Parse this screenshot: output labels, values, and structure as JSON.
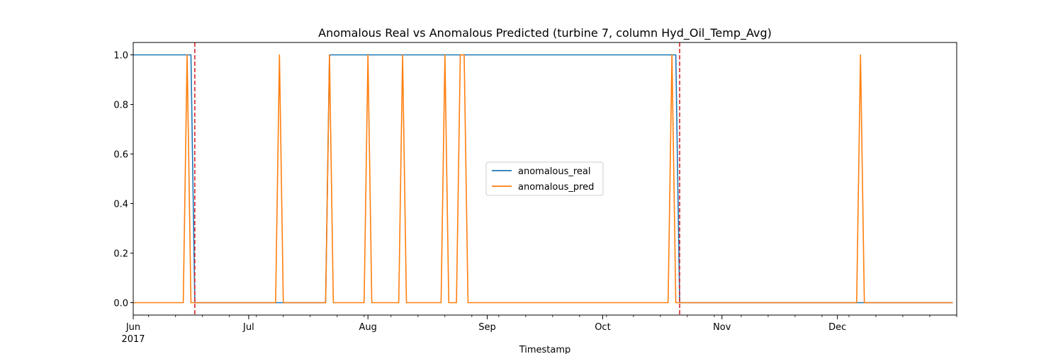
{
  "chart_data": {
    "type": "line",
    "title": "Anomalous Real vs Anomalous Predicted (turbine 7, column Hyd_Oil_Temp_Avg)",
    "xlabel": "Timestamp",
    "ylabel": "",
    "x_range": [
      "2017-06-01",
      "2017-12-31"
    ],
    "ylim": [
      -0.05,
      1.05
    ],
    "yticks": [
      0.0,
      0.2,
      0.4,
      0.6,
      0.8,
      1.0
    ],
    "ytick_labels": [
      "0.0",
      "0.2",
      "0.4",
      "0.6",
      "0.8",
      "1.0"
    ],
    "xticks": [
      {
        "date": "2017-06-01",
        "label": "Jun",
        "sublabel": "2017"
      },
      {
        "date": "2017-07-01",
        "label": "Jul",
        "sublabel": ""
      },
      {
        "date": "2017-08-01",
        "label": "Aug",
        "sublabel": ""
      },
      {
        "date": "2017-09-01",
        "label": "Sep",
        "sublabel": ""
      },
      {
        "date": "2017-10-01",
        "label": "Oct",
        "sublabel": ""
      },
      {
        "date": "2017-11-01",
        "label": "Nov",
        "sublabel": ""
      },
      {
        "date": "2017-12-01",
        "label": "Dec",
        "sublabel": ""
      }
    ],
    "grid": false,
    "legend_position": "center",
    "vlines": [
      {
        "date": "2017-06-17",
        "color": "#d62728",
        "style": "dashed"
      },
      {
        "date": "2017-10-21",
        "color": "#d62728",
        "style": "dashed"
      }
    ],
    "series": [
      {
        "name": "anomalous_real",
        "color": "#1f77b4",
        "points": [
          [
            "2017-06-01",
            1
          ],
          [
            "2017-06-16",
            1
          ],
          [
            "2017-06-17",
            0
          ],
          [
            "2017-07-21",
            0
          ],
          [
            "2017-07-22",
            1
          ],
          [
            "2017-10-20",
            1
          ],
          [
            "2017-10-21",
            0
          ],
          [
            "2017-12-31",
            0
          ]
        ]
      },
      {
        "name": "anomalous_pred",
        "color": "#ff7f0e",
        "points": [
          [
            "2017-06-01",
            0
          ],
          [
            "2017-06-14",
            0
          ],
          [
            "2017-06-15",
            1
          ],
          [
            "2017-06-16",
            0
          ],
          [
            "2017-07-08",
            0
          ],
          [
            "2017-07-09",
            1
          ],
          [
            "2017-07-10",
            0
          ],
          [
            "2017-07-21",
            0
          ],
          [
            "2017-07-22",
            1
          ],
          [
            "2017-07-23",
            0
          ],
          [
            "2017-07-31",
            0
          ],
          [
            "2017-08-01",
            1
          ],
          [
            "2017-08-02",
            0
          ],
          [
            "2017-08-09",
            0
          ],
          [
            "2017-08-10",
            1
          ],
          [
            "2017-08-11",
            0
          ],
          [
            "2017-08-20",
            0
          ],
          [
            "2017-08-21",
            1
          ],
          [
            "2017-08-22",
            0
          ],
          [
            "2017-08-24",
            0
          ],
          [
            "2017-08-25",
            1
          ],
          [
            "2017-08-26",
            1
          ],
          [
            "2017-08-27",
            0
          ],
          [
            "2017-10-18",
            0
          ],
          [
            "2017-10-19",
            1
          ],
          [
            "2017-10-20",
            0
          ],
          [
            "2017-12-06",
            0
          ],
          [
            "2017-12-07",
            1
          ],
          [
            "2017-12-08",
            0
          ],
          [
            "2017-12-31",
            0
          ]
        ]
      }
    ]
  }
}
